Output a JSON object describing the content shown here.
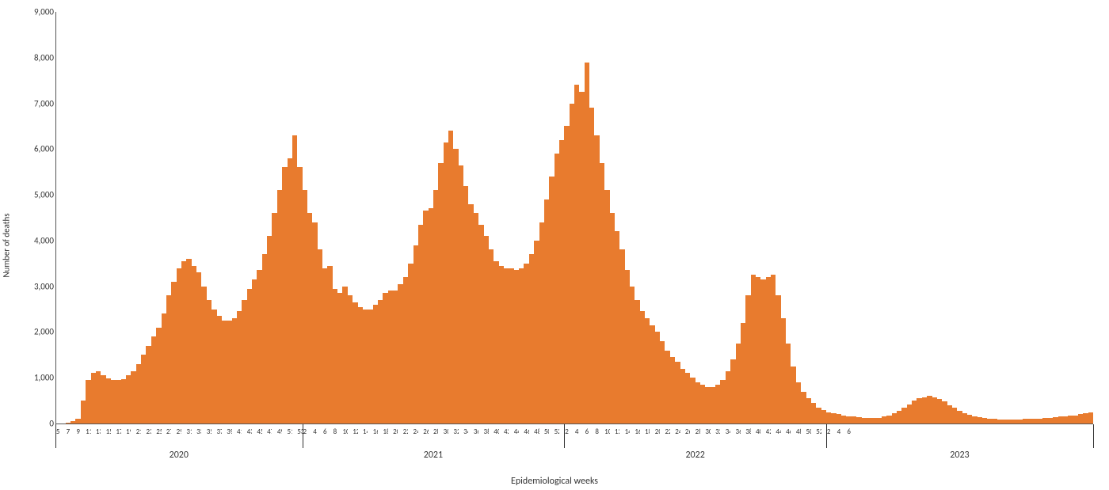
{
  "chart": {
    "type": "bar",
    "ylabel": "Number of deaths",
    "xlabel": "Epidemiological weeks",
    "ylim": [
      0,
      9000
    ],
    "ytick_step": 1000,
    "yticks": [
      "0",
      "1,000",
      "2,000",
      "3,000",
      "4,000",
      "5,000",
      "6,000",
      "7,000",
      "8,000",
      "9,000"
    ],
    "label_fontsize": 11,
    "tick_fontsize": 9,
    "bar_color": "#e87b2e",
    "background_color": "#ffffff",
    "axis_color": "#555555",
    "text_color": "#333333",
    "years": [
      {
        "label": "2020",
        "weeks": [
          "5",
          "7",
          "9",
          "11",
          "13",
          "15",
          "17",
          "19",
          "21",
          "23",
          "25",
          "27",
          "29",
          "31",
          "33",
          "35",
          "37",
          "39",
          "41",
          "43",
          "45",
          "47",
          "49",
          "51",
          "53"
        ]
      },
      {
        "label": "2021",
        "weeks": [
          "2",
          "4",
          "6",
          "8",
          "10",
          "12",
          "14",
          "16",
          "18",
          "20",
          "22",
          "24",
          "26",
          "28",
          "30",
          "32",
          "34",
          "36",
          "38",
          "40",
          "42",
          "44",
          "46",
          "48",
          "50",
          "52"
        ]
      },
      {
        "label": "2022",
        "weeks": [
          "2",
          "4",
          "6",
          "8",
          "10",
          "12",
          "14",
          "16",
          "18",
          "20",
          "22",
          "24",
          "26",
          "28",
          "30",
          "32",
          "34",
          "36",
          "38",
          "40",
          "42",
          "44",
          "46",
          "48",
          "50",
          "52"
        ]
      },
      {
        "label": "2023",
        "weeks": [
          "2",
          "4",
          "6"
        ]
      }
    ],
    "values": [
      0,
      0,
      20,
      50,
      100,
      500,
      950,
      1100,
      1150,
      1050,
      980,
      960,
      950,
      970,
      1050,
      1150,
      1300,
      1500,
      1700,
      1900,
      2100,
      2400,
      2800,
      3100,
      3400,
      3550,
      3600,
      3450,
      3300,
      3000,
      2700,
      2500,
      2350,
      2250,
      2250,
      2300,
      2450,
      2700,
      2950,
      3150,
      3350,
      3700,
      4100,
      4600,
      5100,
      5600,
      5800,
      6300,
      5600,
      5100,
      4600,
      4400,
      3800,
      3400,
      3450,
      2950,
      2850,
      3000,
      2800,
      2650,
      2550,
      2500,
      2500,
      2600,
      2700,
      2850,
      2900,
      2900,
      3050,
      3200,
      3500,
      3900,
      4350,
      4650,
      4700,
      5100,
      5700,
      6150,
      6400,
      6000,
      5650,
      5200,
      4800,
      4600,
      4350,
      4100,
      3800,
      3550,
      3450,
      3400,
      3400,
      3350,
      3400,
      3500,
      3700,
      4000,
      4400,
      4900,
      5400,
      5900,
      6200,
      6500,
      7000,
      7400,
      7250,
      7900,
      6900,
      6300,
      5700,
      5100,
      4600,
      4200,
      3800,
      3350,
      3000,
      2700,
      2450,
      2300,
      2150,
      2000,
      1800,
      1600,
      1450,
      1350,
      1200,
      1100,
      1000,
      900,
      850,
      800,
      800,
      850,
      950,
      1150,
      1400,
      1750,
      2200,
      2800,
      3250,
      3200,
      3150,
      3200,
      3250,
      2800,
      2300,
      1750,
      1250,
      900,
      700,
      550,
      450,
      350,
      300,
      250,
      220,
      200,
      180,
      160,
      150,
      140,
      130,
      120,
      120,
      130,
      150,
      180,
      220,
      280,
      350,
      420,
      500,
      550,
      580,
      600,
      580,
      540,
      480,
      400,
      340,
      280,
      230,
      190,
      160,
      140,
      120,
      110,
      100,
      95,
      90,
      90,
      90,
      95,
      100,
      100,
      100,
      110,
      120,
      130,
      140,
      150,
      160,
      170,
      180,
      200,
      220,
      240
    ]
  }
}
